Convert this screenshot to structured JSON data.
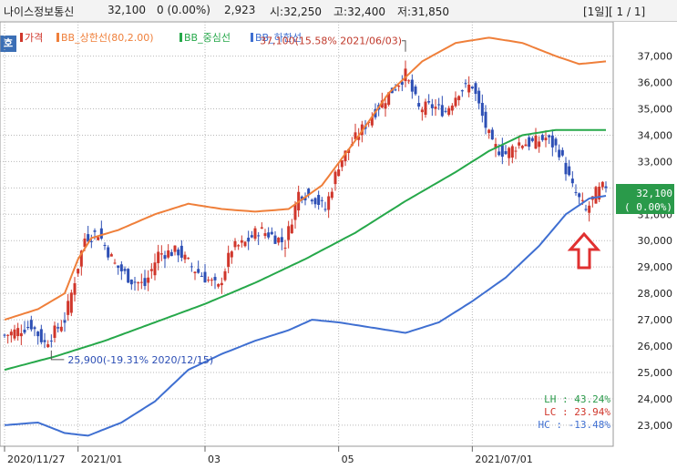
{
  "header": {
    "stock_name": "나이스정보통신",
    "price": "32,100",
    "change": "0 (0.00%)",
    "volume": "2,923",
    "open": "시:32,250",
    "high": "고:32,400",
    "low": "저:31,850",
    "period": "[1일][ 1 / 1]"
  },
  "button_label": "호",
  "price_tag": {
    "price": "32,100",
    "pct": "( 0.00%)"
  },
  "stats": {
    "lh": "LH : 43.24%",
    "lc": "LC : 23.94%",
    "hc": "HC : -13.48%"
  },
  "colors": {
    "price_up": "#d0362b",
    "price_down": "#2d4fb5",
    "bb_upper": "#ef7f3a",
    "bb_mid": "#26a84a",
    "bb_lower": "#3f6fd1",
    "price_tag_bg": "#2a9a4a",
    "arrow": "#e03030",
    "grid": "#b9b9b9"
  },
  "chart_data": {
    "type": "line",
    "legend": [
      "가격",
      "BB_상한선(80,2.00)",
      "BB_중심선",
      "BB_하한선"
    ],
    "y_ticks": [
      23000,
      24000,
      25000,
      26000,
      27000,
      28000,
      29000,
      30000,
      31000,
      32000,
      33000,
      34000,
      35000,
      36000,
      37000
    ],
    "y_tick_labels": [
      "23,000",
      "24,000",
      "25,000",
      "26,000",
      "27,000",
      "28,000",
      "29,000",
      "30,000",
      "31,000",
      "32,000",
      "33,000",
      "34,000",
      "35,000",
      "36,000",
      "37,000"
    ],
    "ylim": [
      22200,
      38300
    ],
    "x_labels": [
      {
        "label": "2020/11/27",
        "idx": 0
      },
      {
        "label": "2021/01",
        "idx": 22
      },
      {
        "label": "03",
        "idx": 60
      },
      {
        "label": "05",
        "idx": 100
      },
      {
        "label": "2021/07/01",
        "idx": 140
      }
    ],
    "n_points": 181,
    "price_close": [
      {
        "idx": 0,
        "v": 26400
      },
      {
        "idx": 8,
        "v": 26800
      },
      {
        "idx": 12,
        "v": 26100
      },
      {
        "idx": 18,
        "v": 27000
      },
      {
        "idx": 20,
        "v": 28000
      },
      {
        "idx": 24,
        "v": 30100
      },
      {
        "idx": 28,
        "v": 30300
      },
      {
        "idx": 33,
        "v": 29100
      },
      {
        "idx": 38,
        "v": 28500
      },
      {
        "idx": 42,
        "v": 28300
      },
      {
        "idx": 46,
        "v": 29500
      },
      {
        "idx": 52,
        "v": 29600
      },
      {
        "idx": 56,
        "v": 29000
      },
      {
        "idx": 60,
        "v": 28600
      },
      {
        "idx": 64,
        "v": 28200
      },
      {
        "idx": 68,
        "v": 29700
      },
      {
        "idx": 72,
        "v": 29900
      },
      {
        "idx": 76,
        "v": 30400
      },
      {
        "idx": 80,
        "v": 30200
      },
      {
        "idx": 84,
        "v": 29900
      },
      {
        "idx": 88,
        "v": 31800
      },
      {
        "idx": 92,
        "v": 31700
      },
      {
        "idx": 96,
        "v": 31200
      },
      {
        "idx": 100,
        "v": 32900
      },
      {
        "idx": 104,
        "v": 33700
      },
      {
        "idx": 108,
        "v": 34400
      },
      {
        "idx": 112,
        "v": 35100
      },
      {
        "idx": 116,
        "v": 35700
      },
      {
        "idx": 120,
        "v": 36300
      },
      {
        "idx": 124,
        "v": 35000
      },
      {
        "idx": 128,
        "v": 35100
      },
      {
        "idx": 132,
        "v": 34900
      },
      {
        "idx": 136,
        "v": 35700
      },
      {
        "idx": 140,
        "v": 35900
      },
      {
        "idx": 143,
        "v": 34700
      },
      {
        "idx": 146,
        "v": 33600
      },
      {
        "idx": 150,
        "v": 33300
      },
      {
        "idx": 154,
        "v": 33700
      },
      {
        "idx": 158,
        "v": 33700
      },
      {
        "idx": 162,
        "v": 33900
      },
      {
        "idx": 166,
        "v": 33400
      },
      {
        "idx": 170,
        "v": 32000
      },
      {
        "idx": 174,
        "v": 31100
      },
      {
        "idx": 177,
        "v": 31800
      },
      {
        "idx": 180,
        "v": 32100
      }
    ],
    "bb_upper": [
      {
        "idx": 0,
        "v": 27000
      },
      {
        "idx": 10,
        "v": 27400
      },
      {
        "idx": 18,
        "v": 28000
      },
      {
        "idx": 22,
        "v": 29300
      },
      {
        "idx": 26,
        "v": 30100
      },
      {
        "idx": 34,
        "v": 30400
      },
      {
        "idx": 45,
        "v": 31000
      },
      {
        "idx": 55,
        "v": 31400
      },
      {
        "idx": 65,
        "v": 31200
      },
      {
        "idx": 75,
        "v": 31100
      },
      {
        "idx": 85,
        "v": 31200
      },
      {
        "idx": 95,
        "v": 32100
      },
      {
        "idx": 105,
        "v": 33800
      },
      {
        "idx": 115,
        "v": 35600
      },
      {
        "idx": 125,
        "v": 36800
      },
      {
        "idx": 135,
        "v": 37500
      },
      {
        "idx": 145,
        "v": 37700
      },
      {
        "idx": 155,
        "v": 37500
      },
      {
        "idx": 165,
        "v": 37000
      },
      {
        "idx": 172,
        "v": 36700
      },
      {
        "idx": 180,
        "v": 36800
      }
    ],
    "bb_mid": [
      {
        "idx": 0,
        "v": 25100
      },
      {
        "idx": 15,
        "v": 25600
      },
      {
        "idx": 30,
        "v": 26200
      },
      {
        "idx": 45,
        "v": 26900
      },
      {
        "idx": 60,
        "v": 27600
      },
      {
        "idx": 75,
        "v": 28400
      },
      {
        "idx": 90,
        "v": 29300
      },
      {
        "idx": 105,
        "v": 30300
      },
      {
        "idx": 120,
        "v": 31500
      },
      {
        "idx": 135,
        "v": 32600
      },
      {
        "idx": 145,
        "v": 33400
      },
      {
        "idx": 155,
        "v": 34000
      },
      {
        "idx": 165,
        "v": 34200
      },
      {
        "idx": 180,
        "v": 34200
      }
    ],
    "bb_lower": [
      {
        "idx": 0,
        "v": 23000
      },
      {
        "idx": 10,
        "v": 23100
      },
      {
        "idx": 18,
        "v": 22700
      },
      {
        "idx": 25,
        "v": 22600
      },
      {
        "idx": 35,
        "v": 23100
      },
      {
        "idx": 45,
        "v": 23900
      },
      {
        "idx": 55,
        "v": 25100
      },
      {
        "idx": 65,
        "v": 25700
      },
      {
        "idx": 75,
        "v": 26200
      },
      {
        "idx": 85,
        "v": 26600
      },
      {
        "idx": 92,
        "v": 27000
      },
      {
        "idx": 100,
        "v": 26900
      },
      {
        "idx": 110,
        "v": 26700
      },
      {
        "idx": 120,
        "v": 26500
      },
      {
        "idx": 130,
        "v": 26900
      },
      {
        "idx": 140,
        "v": 27700
      },
      {
        "idx": 150,
        "v": 28600
      },
      {
        "idx": 160,
        "v": 29800
      },
      {
        "idx": 168,
        "v": 31000
      },
      {
        "idx": 175,
        "v": 31600
      },
      {
        "idx": 180,
        "v": 31700
      }
    ],
    "annotations": [
      {
        "text": "37,100(15.58% 2021/06/03)",
        "idx": 120,
        "v": 37100,
        "side": "top"
      },
      {
        "text": "25,900(-19.31% 2020/12/15)",
        "idx": 14,
        "v": 25900,
        "side": "bottom"
      }
    ]
  }
}
